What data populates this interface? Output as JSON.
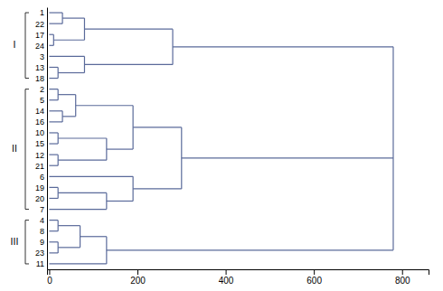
{
  "chart_data": {
    "type": "dendrogram",
    "categories": [
      "1",
      "22",
      "17",
      "24",
      "3",
      "13",
      "18",
      "2",
      "5",
      "14",
      "16",
      "10",
      "15",
      "12",
      "21",
      "6",
      "19",
      "20",
      "7",
      "4",
      "8",
      "9",
      "23",
      "11"
    ],
    "tree": {
      "height": 780,
      "children": [
        {
          "height": 280,
          "children": [
            {
              "height": 80,
              "children": [
                {
                  "height": 30,
                  "children": [
                    {
                      "leaf": 0,
                      "height": 0
                    },
                    {
                      "leaf": 1,
                      "height": 0
                    }
                  ]
                },
                {
                  "height": 10,
                  "children": [
                    {
                      "leaf": 2,
                      "height": 0
                    },
                    {
                      "leaf": 3,
                      "height": 0
                    }
                  ]
                }
              ]
            },
            {
              "height": 80,
              "children": [
                {
                  "leaf": 4,
                  "height": 0
                },
                {
                  "height": 20,
                  "children": [
                    {
                      "leaf": 5,
                      "height": 0
                    },
                    {
                      "leaf": 6,
                      "height": 0
                    }
                  ]
                }
              ]
            }
          ]
        },
        {
          "height": 300,
          "children": [
            {
              "height": 190,
              "children": [
                {
                  "height": 60,
                  "children": [
                    {
                      "height": 20,
                      "children": [
                        {
                          "leaf": 7,
                          "height": 0
                        },
                        {
                          "leaf": 8,
                          "height": 0
                        }
                      ]
                    },
                    {
                      "height": 30,
                      "children": [
                        {
                          "leaf": 9,
                          "height": 0
                        },
                        {
                          "leaf": 10,
                          "height": 0
                        }
                      ]
                    }
                  ]
                },
                {
                  "height": 130,
                  "children": [
                    {
                      "height": 20,
                      "children": [
                        {
                          "leaf": 11,
                          "height": 0
                        },
                        {
                          "leaf": 12,
                          "height": 0
                        }
                      ]
                    },
                    {
                      "height": 20,
                      "children": [
                        {
                          "leaf": 13,
                          "height": 0
                        },
                        {
                          "leaf": 14,
                          "height": 0
                        }
                      ]
                    }
                  ]
                }
              ]
            },
            {
              "height": 190,
              "children": [
                {
                  "leaf": 15,
                  "height": 0
                },
                {
                  "height": 130,
                  "children": [
                    {
                      "height": 20,
                      "children": [
                        {
                          "leaf": 16,
                          "height": 0
                        },
                        {
                          "leaf": 17,
                          "height": 0
                        }
                      ]
                    },
                    {
                      "leaf": 18,
                      "height": 0
                    }
                  ]
                }
              ]
            }
          ]
        },
        {
          "height": 130,
          "children": [
            {
              "height": 70,
              "children": [
                {
                  "height": 20,
                  "children": [
                    {
                      "leaf": 19,
                      "height": 0
                    },
                    {
                      "leaf": 20,
                      "height": 0
                    }
                  ]
                },
                {
                  "height": 20,
                  "children": [
                    {
                      "leaf": 21,
                      "height": 0
                    },
                    {
                      "leaf": 22,
                      "height": 0
                    }
                  ]
                }
              ]
            },
            {
              "leaf": 23,
              "height": 0
            }
          ]
        }
      ]
    },
    "clusters": [
      {
        "label": "I",
        "members": [
          0,
          1,
          2,
          3,
          4,
          5,
          6
        ]
      },
      {
        "label": "II",
        "members": [
          7,
          8,
          9,
          10,
          11,
          12,
          13,
          14,
          15,
          16,
          17,
          18
        ]
      },
      {
        "label": "III",
        "members": [
          19,
          20,
          21,
          22,
          23
        ]
      }
    ],
    "color": "#5a6a9a",
    "xlim": [
      -5,
      860
    ],
    "xticks": [
      0,
      200,
      400,
      600,
      800
    ]
  }
}
